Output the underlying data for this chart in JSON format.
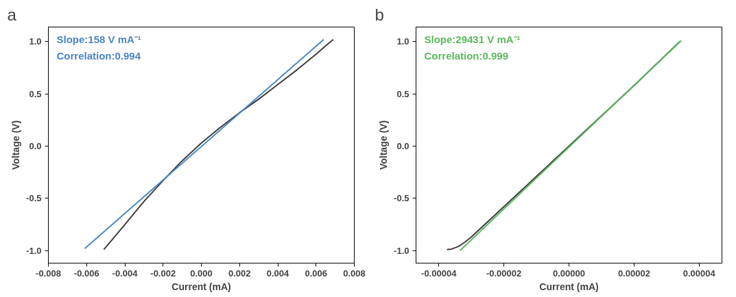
{
  "chart_data": [
    {
      "type": "line",
      "title": "a",
      "xlabel": "Current (mA)",
      "ylabel": "Voltage (V)",
      "xlim": [
        -0.008,
        0.008
      ],
      "ylim": [
        -1.12,
        1.14
      ],
      "xticks": [
        {
          "value": -0.008,
          "label": "-0.008"
        },
        {
          "value": -0.006,
          "label": "-0.006"
        },
        {
          "value": -0.004,
          "label": "-0.004"
        },
        {
          "value": -0.002,
          "label": "-0.002"
        },
        {
          "value": 0,
          "label": "0.000"
        },
        {
          "value": 0.002,
          "label": "0.002"
        },
        {
          "value": 0.004,
          "label": "0.004"
        },
        {
          "value": 0.006,
          "label": "0.006"
        },
        {
          "value": 0.008,
          "label": "0.008"
        }
      ],
      "yticks": [
        {
          "value": -1,
          "label": "-1.0"
        },
        {
          "value": -0.5,
          "label": "-0.5"
        },
        {
          "value": 0,
          "label": "0.0"
        },
        {
          "value": 0.5,
          "label": "0.5"
        },
        {
          "value": 1,
          "label": "1.0"
        }
      ],
      "series": [
        {
          "color": "#3c3c3c",
          "x": [
            -0.0051,
            -0.0045,
            -0.004,
            -0.0035,
            -0.003,
            -0.0025,
            -0.002,
            -0.001,
            0,
            0.001,
            0.002,
            0.003,
            0.004,
            0.005,
            0.006,
            0.0065,
            0.0069
          ],
          "values": [
            -0.99,
            -0.86,
            -0.75,
            -0.64,
            -0.53,
            -0.43,
            -0.33,
            -0.14,
            0.03,
            0.18,
            0.32,
            0.45,
            0.59,
            0.73,
            0.88,
            0.96,
            1.02
          ]
        },
        {
          "color": "#4a86c5",
          "x": [
            -0.0061,
            0.0064
          ],
          "values": [
            -0.98,
            1.02
          ]
        }
      ],
      "annotations": [
        "Slope:158 V mA⁻¹",
        "Correlation:0.994"
      ]
    },
    {
      "type": "line",
      "title": "b",
      "xlabel": "Current (mA)",
      "ylabel": "Voltage (V)",
      "xlim": [
        -4.7e-05,
        4.7e-05
      ],
      "ylim": [
        -1.12,
        1.14
      ],
      "xticks": [
        {
          "value": -4e-05,
          "label": "-0.00004"
        },
        {
          "value": -2e-05,
          "label": "-0.00002"
        },
        {
          "value": 0,
          "label": "0.00000"
        },
        {
          "value": 2e-05,
          "label": "0.00002"
        },
        {
          "value": 4e-05,
          "label": "0.00004"
        }
      ],
      "yticks": [
        {
          "value": -1,
          "label": "-1.0"
        },
        {
          "value": -0.5,
          "label": "-0.5"
        },
        {
          "value": 0,
          "label": "0.0"
        },
        {
          "value": 0.5,
          "label": "0.5"
        },
        {
          "value": 1,
          "label": "1.0"
        }
      ],
      "series": [
        {
          "color": "#3c3c3c",
          "x": [
            -3.75e-05,
            -3.6e-05,
            -3.4e-05,
            -3.2e-05,
            -3e-05,
            -2e-05,
            -1e-05,
            0,
            1e-05,
            2e-05,
            3e-05,
            3.4e-05
          ],
          "values": [
            -0.99,
            -0.985,
            -0.96,
            -0.92,
            -0.87,
            -0.58,
            -0.29,
            0.0,
            0.29,
            0.58,
            0.88,
            1.0
          ]
        },
        {
          "color": "#5cb85c",
          "x": [
            -3.35e-05,
            3.45e-05
          ],
          "values": [
            -1.0,
            1.01
          ]
        }
      ],
      "annotations": [
        "Slope:29431 V mA⁻¹",
        "Correlation:0.999"
      ]
    }
  ]
}
